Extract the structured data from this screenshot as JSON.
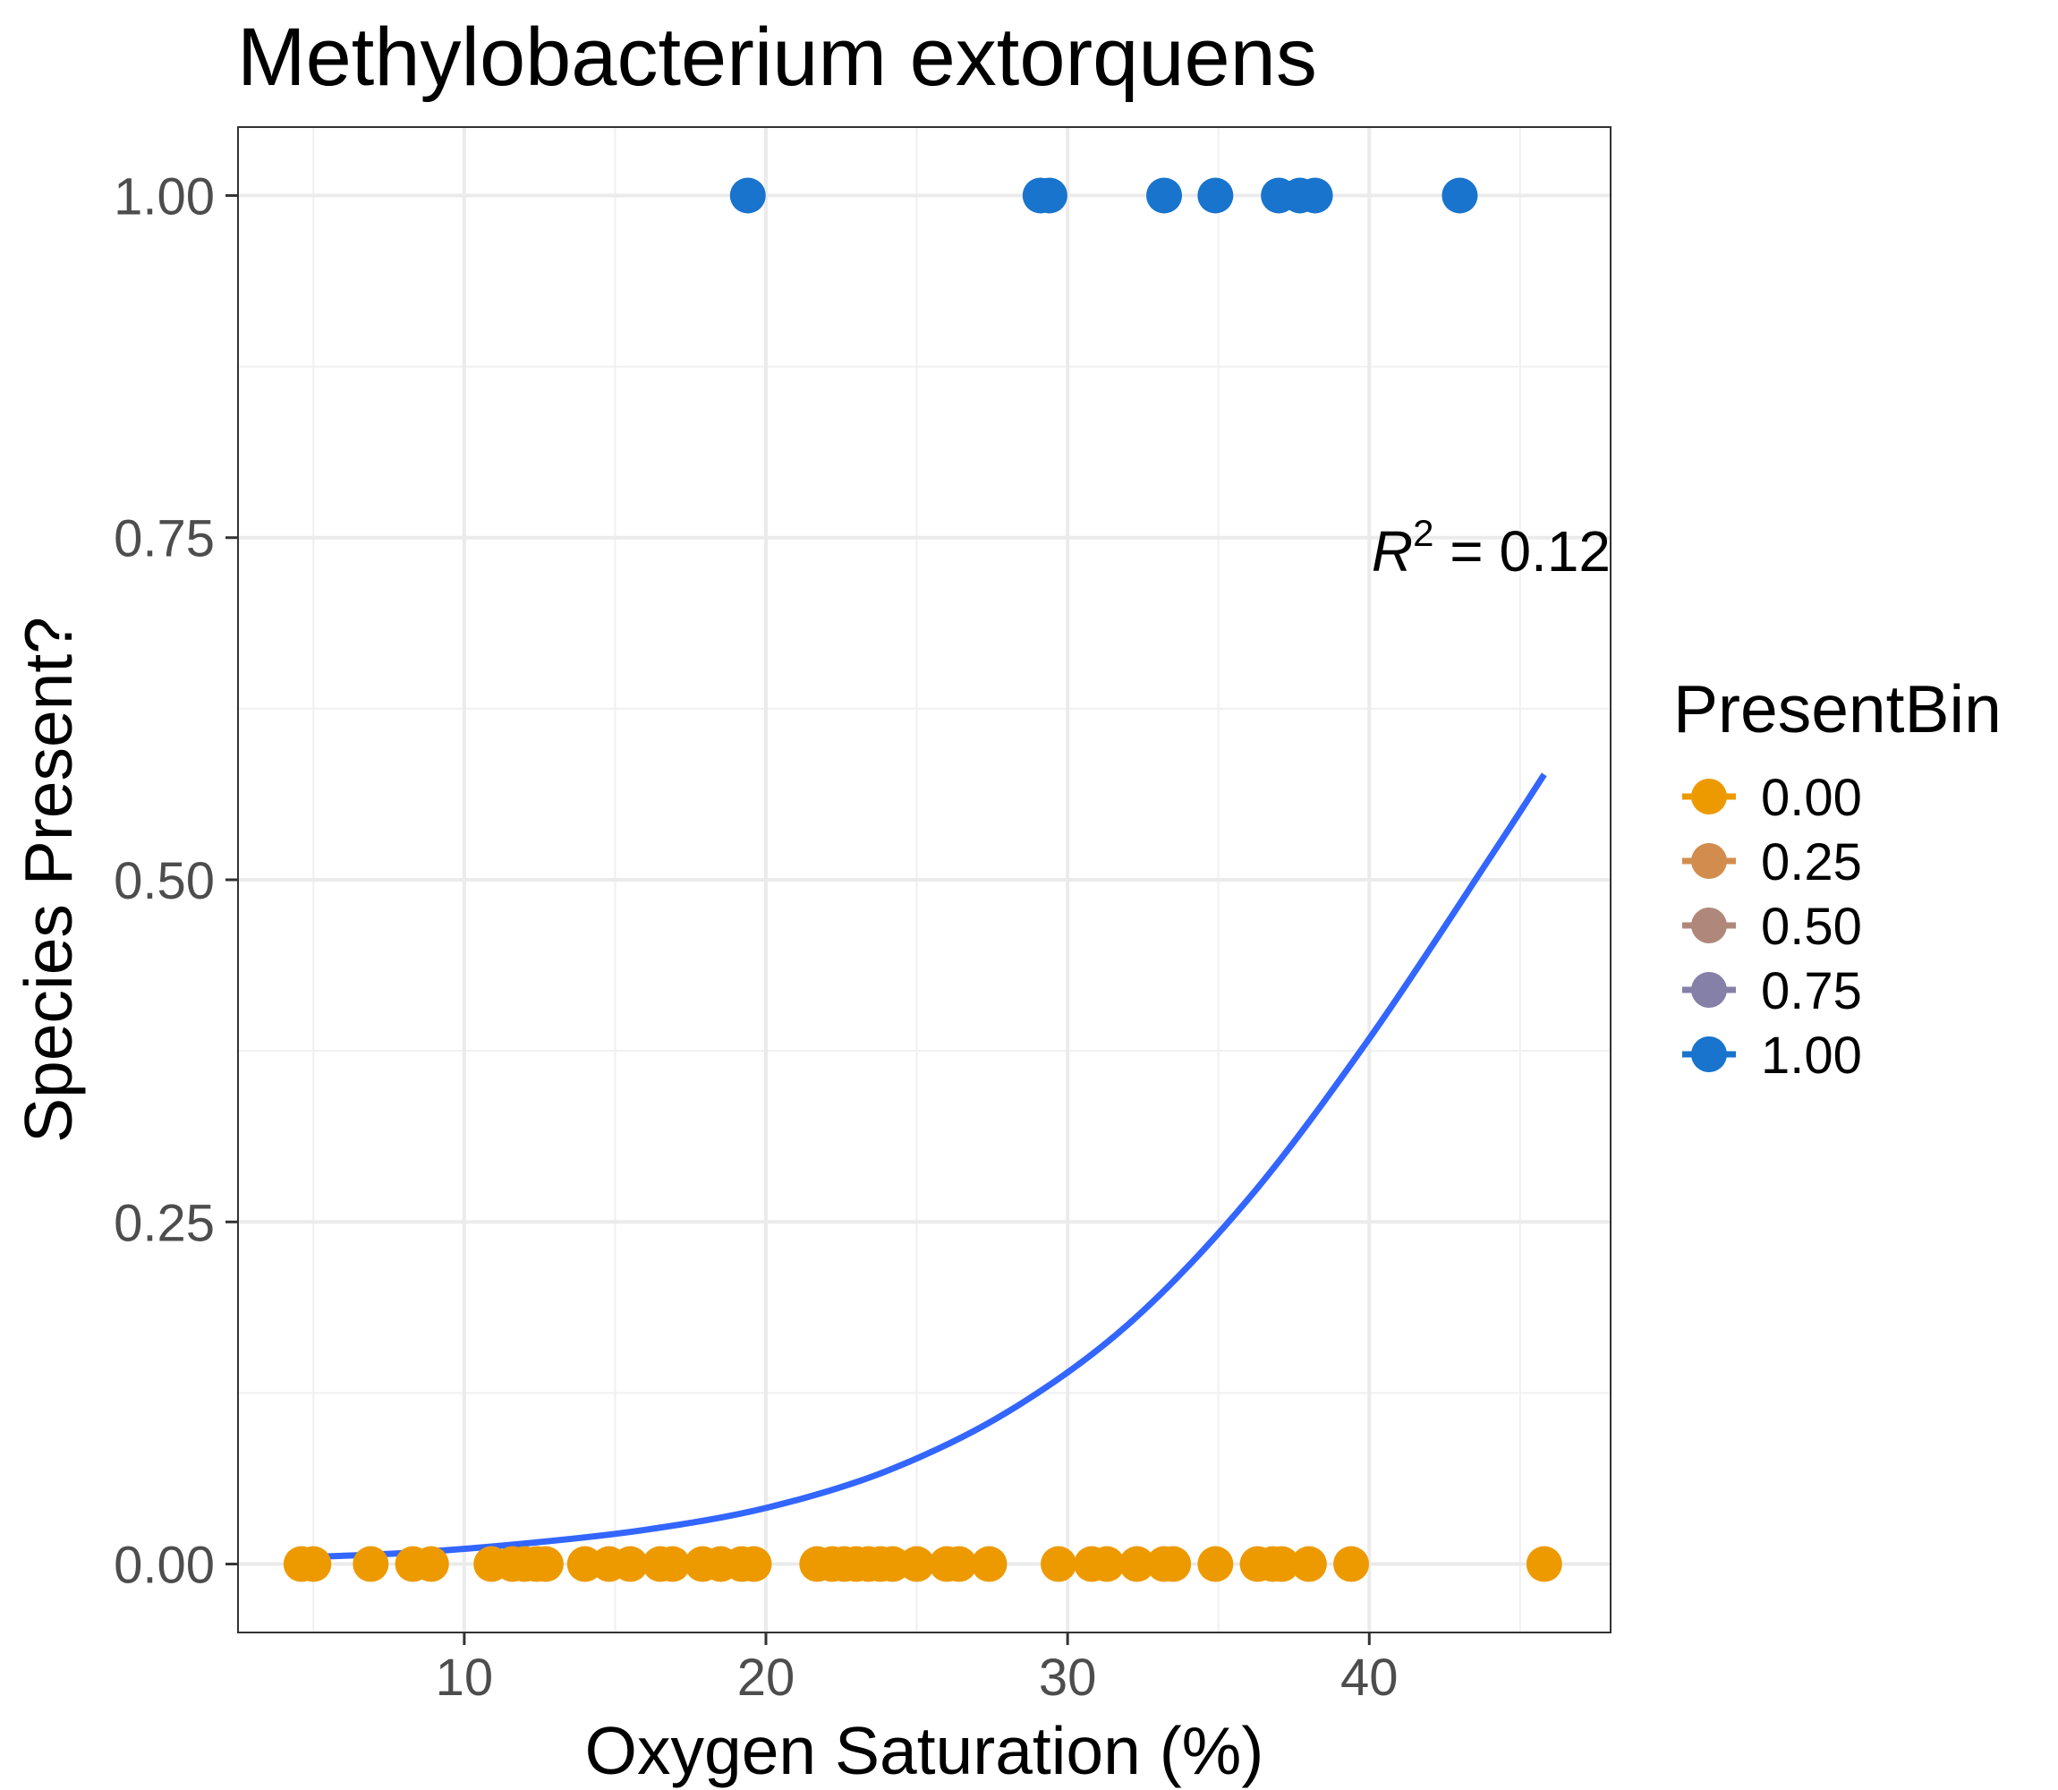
{
  "chart_data": {
    "type": "scatter",
    "title": "Methylobacterium extorquens",
    "xlabel": "Oxygen Saturation (%)",
    "ylabel": "Species Present?",
    "xlim": [
      2.5,
      48
    ],
    "ylim": [
      -0.05,
      1.05
    ],
    "x_ticks": [
      10,
      20,
      30,
      40
    ],
    "y_ticks": [
      0,
      0.25,
      0.5,
      0.75,
      1
    ],
    "y_tick_labels": [
      "0.00",
      "0.25",
      "0.50",
      "0.75",
      "1.00"
    ],
    "grid": true,
    "legend": {
      "title": "PresentBin",
      "placement": "right",
      "entries": [
        {
          "label": "0.00",
          "color": "#ED9A00"
        },
        {
          "label": "0.25",
          "color": "#D28D4E"
        },
        {
          "label": "0.50",
          "color": "#B0887B"
        },
        {
          "label": "0.75",
          "color": "#8480A8"
        },
        {
          "label": "1.00",
          "color": "#1874CD"
        }
      ]
    },
    "series": [
      {
        "present_bin": 0,
        "color": "#ED9A00",
        "x": [
          4.6,
          5.0,
          6.9,
          8.3,
          8.9,
          10.9,
          11.6,
          12.0,
          12.4,
          12.7,
          14.0,
          14.8,
          15.5,
          16.5,
          16.9,
          17.9,
          18.5,
          19.2,
          19.6,
          21.7,
          22.2,
          22.6,
          23.0,
          23.4,
          23.8,
          24.2,
          25.0,
          26.0,
          26.4,
          27.4,
          29.7,
          30.8,
          31.3,
          32.3,
          33.2,
          33.5,
          34.9,
          36.3,
          36.8,
          37.1,
          38.0,
          39.4,
          45.8
        ],
        "y": [
          0,
          0,
          0,
          0,
          0,
          0,
          0,
          0,
          0,
          0,
          0,
          0,
          0,
          0,
          0,
          0,
          0,
          0,
          0,
          0,
          0,
          0,
          0,
          0,
          0,
          0,
          0,
          0,
          0,
          0,
          0,
          0,
          0,
          0,
          0,
          0,
          0,
          0,
          0,
          0,
          0,
          0,
          0
        ]
      },
      {
        "present_bin": 1,
        "color": "#1874CD",
        "x": [
          19.4,
          29.1,
          29.4,
          33.2,
          34.9,
          37.0,
          37.7,
          38.2,
          43.0
        ],
        "y": [
          1,
          1,
          1,
          1,
          1,
          1,
          1,
          1,
          1
        ]
      }
    ],
    "fit_curve": {
      "color": "#3366FF",
      "x": [
        4.6,
        8,
        12,
        16,
        20,
        24,
        28,
        32,
        36,
        40,
        44,
        45.8
      ],
      "y": [
        0.005,
        0.008,
        0.015,
        0.025,
        0.041,
        0.068,
        0.111,
        0.175,
        0.267,
        0.384,
        0.516,
        0.577
      ]
    },
    "annotation": {
      "symbol": "R",
      "superscript": "2",
      "text": " = 0.12",
      "x": 43,
      "y": 0.74
    }
  }
}
